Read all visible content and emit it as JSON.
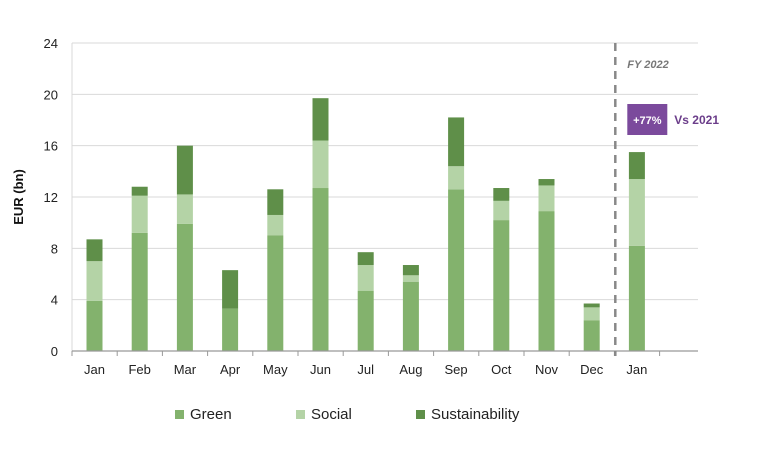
{
  "chart_data": {
    "type": "bar",
    "stacked": true,
    "title": "",
    "xlabel": "",
    "ylabel": "EUR (bn)",
    "ylim": [
      0,
      24
    ],
    "yticks": [
      0,
      4,
      8,
      12,
      16,
      20,
      24
    ],
    "grid": true,
    "legend_position": "bottom",
    "categories": [
      "Jan",
      "Feb",
      "Mar",
      "Apr",
      "May",
      "Jun",
      "Jul",
      "Aug",
      "Sep",
      "Oct",
      "Nov",
      "Dec",
      "Jan"
    ],
    "series": [
      {
        "name": "Green",
        "color": "#83b26d",
        "values": [
          3.9,
          9.2,
          9.9,
          3.3,
          9.0,
          12.7,
          4.7,
          5.4,
          12.6,
          10.2,
          10.9,
          2.4,
          8.2
        ]
      },
      {
        "name": "Social",
        "color": "#b4d3a6",
        "values": [
          3.1,
          2.9,
          2.3,
          0.0,
          1.6,
          3.7,
          2.0,
          0.5,
          1.8,
          1.5,
          2.0,
          1.0,
          5.2
        ]
      },
      {
        "name": "Sustainability",
        "color": "#5f8f49",
        "values": [
          1.7,
          0.7,
          3.8,
          3.0,
          2.0,
          3.3,
          1.0,
          0.8,
          3.8,
          1.0,
          0.5,
          0.3,
          2.1
        ]
      }
    ],
    "annotations": {
      "divider_after_index": 11,
      "period_label": "FY 2022",
      "badge_text": "+77%",
      "badge_color": "#7b4a9c",
      "badge_caption": "Vs 2021"
    }
  }
}
